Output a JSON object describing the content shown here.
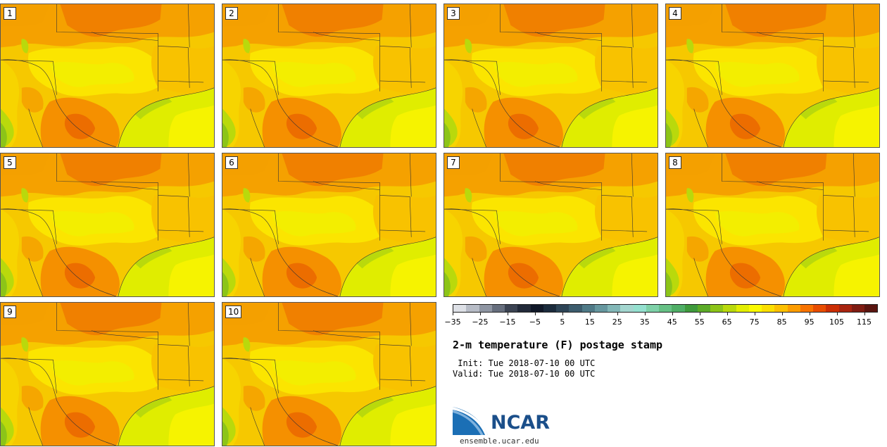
{
  "panels": [
    {
      "label": "1"
    },
    {
      "label": "2"
    },
    {
      "label": "3"
    },
    {
      "label": "4"
    },
    {
      "label": "5"
    },
    {
      "label": "6"
    },
    {
      "label": "7"
    },
    {
      "label": "8"
    },
    {
      "label": "9"
    },
    {
      "label": "10"
    }
  ],
  "colorbar": {
    "ticks": [
      "−35",
      "−25",
      "−15",
      "−5",
      "5",
      "15",
      "25",
      "35",
      "45",
      "55",
      "65",
      "75",
      "85",
      "95",
      "105",
      "115"
    ],
    "colors": [
      "#dde0e6",
      "#b7bcc6",
      "#8e95a2",
      "#666e7d",
      "#3b4352",
      "#222a39",
      "#101828",
      "#1b2b3c",
      "#2d4456",
      "#3c5c6d",
      "#4f7a87",
      "#66979f",
      "#82b7b7",
      "#a3d6cf",
      "#94e0cf",
      "#7ed1a8",
      "#66c085",
      "#4fae66",
      "#3f9a3c",
      "#5cab28",
      "#8cc418",
      "#b9d90c",
      "#e3ee02",
      "#fbfa00",
      "#fbdf00",
      "#fcc000",
      "#fc9c00",
      "#f87300",
      "#e84d00",
      "#cb2e04",
      "#a8240f",
      "#7f1c12",
      "#5a1510"
    ],
    "range": [
      -35,
      120
    ]
  },
  "title": "2-m temperature (F) postage stamp",
  "init": " Init: Tue 2018-07-10 00 UTC",
  "valid": "Valid: Tue 2018-07-10 00 UTC",
  "logo": {
    "text": "NCAR",
    "color": "#1b4f8a"
  },
  "website": "ensemble.ucar.edu"
}
